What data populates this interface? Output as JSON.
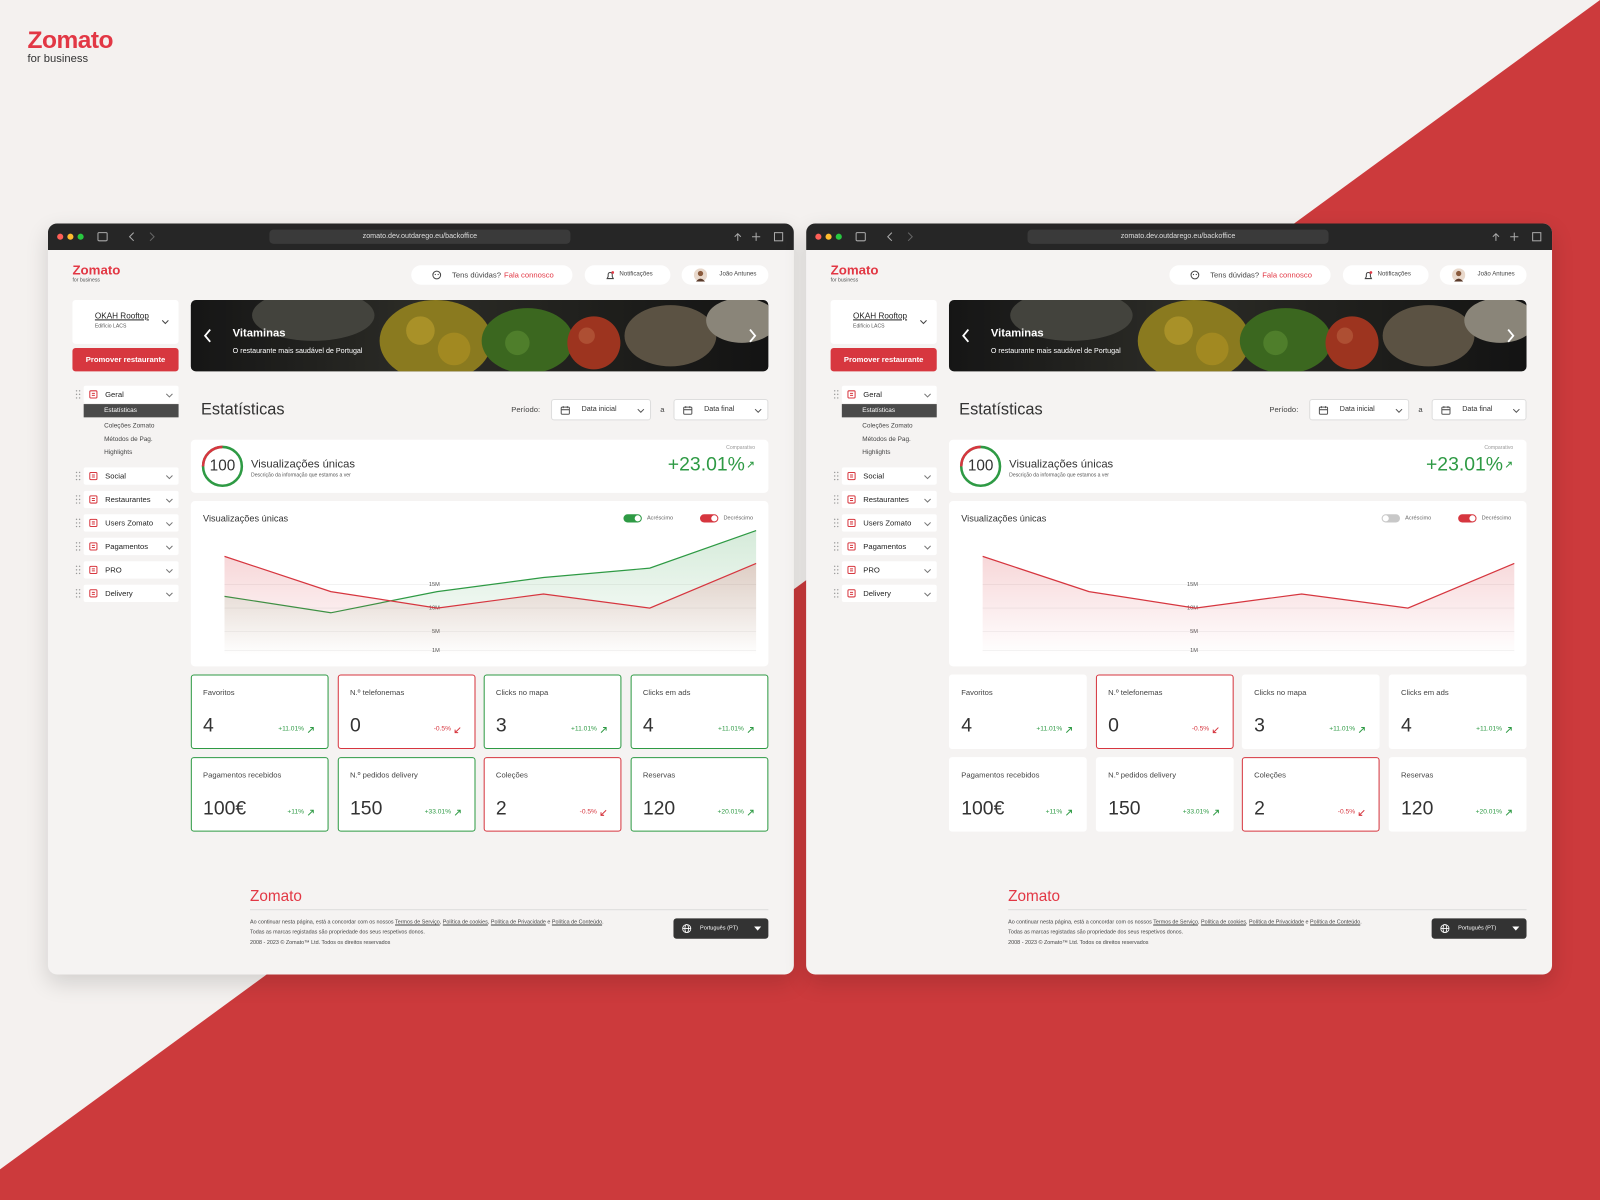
{
  "brand": {
    "name": "Zomato",
    "tagline": "for business"
  },
  "screens": [
    {
      "url": "zomato.dev.outdarego.eu/backoffice",
      "logo": {
        "name": "Zomato",
        "tagline": "for business"
      },
      "help": {
        "question": "Tens dúvidas?",
        "link": "Fala connosco"
      },
      "notifications": "Notificações",
      "user": "João Antunes",
      "restaurant": {
        "name": "OKAH Rooftop",
        "address": "Edifício LACS"
      },
      "promote": "Promover restaurante",
      "menu": [
        {
          "label": "Geral",
          "active": 0,
          "children": [
            "Estatísticas",
            "Coleções Zomato",
            "Métodos de Pag.",
            "Highlights"
          ]
        },
        {
          "label": "Social"
        },
        {
          "label": "Restaurantes"
        },
        {
          "label": "Users Zomato"
        },
        {
          "label": "Pagamentos"
        },
        {
          "label": "PRO"
        },
        {
          "label": "Delivery"
        }
      ],
      "banner": {
        "title": "Vitaminas",
        "subtitle": "O restaurante mais saudável de Portugal"
      },
      "page_title": "Estatísticas",
      "period": {
        "label": "Período:",
        "start": "Data inicial",
        "separator": "a",
        "end": "Data final"
      },
      "kpi": {
        "score": "100",
        "title": "Visualizações únicas",
        "description": "Descrição da informação que estamos a ver",
        "compare_label": "Comparativo",
        "change": "+23.01%"
      },
      "chart": {
        "type": "area",
        "title": "Visualizações únicas",
        "categories": [
          null,
          null,
          null,
          null,
          null,
          null
        ],
        "series": [
          {
            "name": "Acréscimo",
            "color": "#2e9a44",
            "visible": true,
            "values": [
              12500000,
              9000000,
              13500000,
              16500000,
              18500000,
              26500000
            ]
          },
          {
            "name": "Decréscimo",
            "color": "#d6363f",
            "visible": true,
            "values": [
              21000000,
              13500000,
              10000000,
              13000000,
              10000000,
              19500000
            ]
          }
        ],
        "ylim": [
          0,
          28000000
        ],
        "yticks": [
          {
            "value": 1000000,
            "label": "1M"
          },
          {
            "value": 5000000,
            "label": "5M"
          },
          {
            "value": 10000000,
            "label": "10M"
          },
          {
            "value": 15000000,
            "label": "15M"
          }
        ],
        "grid": true
      },
      "cards": [
        {
          "label": "Favoritos",
          "value": "4",
          "change": "+11.01%"
        },
        {
          "label": "N.º telefonemas",
          "value": "0",
          "change": "-0.5%"
        },
        {
          "label": "Clicks no mapa",
          "value": "3",
          "change": "+11.01%"
        },
        {
          "label": "Clicks em ads",
          "value": "4",
          "change": "+11.01%"
        },
        {
          "label": "Pagamentos recebidos",
          "value": "100€",
          "change": "+11%"
        },
        {
          "label": "N.º pedidos delivery",
          "value": "150",
          "change": "+33.01%"
        },
        {
          "label": "Coleções",
          "value": "2",
          "change": "-0.5%"
        },
        {
          "label": "Reservas",
          "value": "120",
          "change": "+20.01%"
        }
      ],
      "footer": {
        "brand": "Zomato",
        "legal": [
          "Ao continuar nesta página, está a concordar com os nossos ",
          "Termos de Serviço",
          ", ",
          "Política de cookies",
          ", ",
          "Política de Privacidade",
          " e ",
          "Política de Conteúdo",
          "."
        ],
        "trademarks": "Todas as marcas registadas são propriedade dos seus respetivos donos.",
        "copyright": "2008 - 2023 © Zomato™ Ltd. Todos os direitos reservados",
        "language": "Português (PT)"
      }
    },
    {
      "url": "zomato.dev.outdarego.eu/backoffice",
      "logo": {
        "name": "Zomato",
        "tagline": "for business"
      },
      "help": {
        "question": "Tens dúvidas?",
        "link": "Fala connosco"
      },
      "notifications": "Notificações",
      "user": "João Antunes",
      "restaurant": {
        "name": "OKAH Rooftop",
        "address": "Edifício LACS"
      },
      "promote": "Promover restaurante",
      "menu": [
        {
          "label": "Geral",
          "active": 0,
          "children": [
            "Estatísticas",
            "Coleções Zomato",
            "Métodos de Pag.",
            "Highlights"
          ]
        },
        {
          "label": "Social"
        },
        {
          "label": "Restaurantes"
        },
        {
          "label": "Users Zomato"
        },
        {
          "label": "Pagamentos"
        },
        {
          "label": "PRO"
        },
        {
          "label": "Delivery"
        }
      ],
      "banner": {
        "title": "Vitaminas",
        "subtitle": "O restaurante mais saudável de Portugal"
      },
      "page_title": "Estatísticas",
      "period": {
        "label": "Período:",
        "start": "Data inicial",
        "separator": "a",
        "end": "Data final"
      },
      "kpi": {
        "score": "100",
        "title": "Visualizações únicas",
        "description": "Descrição da informação que estamos a ver",
        "compare_label": "Comparativo",
        "change": "+23.01%"
      },
      "chart": {
        "type": "area",
        "title": "Visualizações únicas",
        "categories": [
          null,
          null,
          null,
          null,
          null,
          null
        ],
        "series": [
          {
            "name": "Acréscimo",
            "color": "#2e9a44",
            "visible": false
          },
          {
            "name": "Decréscimo",
            "color": "#d6363f",
            "visible": true,
            "values": [
              21000000,
              13500000,
              10000000,
              13000000,
              10000000,
              19500000
            ]
          }
        ],
        "ylim": [
          0,
          28000000
        ],
        "yticks": [
          {
            "value": 1000000,
            "label": "1M"
          },
          {
            "value": 5000000,
            "label": "5M"
          },
          {
            "value": 10000000,
            "label": "10M"
          },
          {
            "value": 15000000,
            "label": "15M"
          }
        ],
        "grid": true
      },
      "cards": [
        {
          "label": "Favoritos",
          "value": "4",
          "change": "+11.01%"
        },
        {
          "label": "N.º telefonemas",
          "value": "0",
          "change": "-0.5%"
        },
        {
          "label": "Clicks no mapa",
          "value": "3",
          "change": "+11.01%"
        },
        {
          "label": "Clicks em ads",
          "value": "4",
          "change": "+11.01%"
        },
        {
          "label": "Pagamentos recebidos",
          "value": "100€",
          "change": "+11%"
        },
        {
          "label": "N.º pedidos delivery",
          "value": "150",
          "change": "+33.01%"
        },
        {
          "label": "Coleções",
          "value": "2",
          "change": "-0.5%"
        },
        {
          "label": "Reservas",
          "value": "120",
          "change": "+20.01%"
        }
      ],
      "footer": {
        "brand": "Zomato",
        "legal": [
          "Ao continuar nesta página, está a concordar com os nossos ",
          "Termos de Serviço",
          ", ",
          "Política de cookies",
          ", ",
          "Política de Privacidade",
          " e ",
          "Política de Conteúdo",
          "."
        ],
        "trademarks": "Todas as marcas registadas são propriedade dos seus respetivos donos.",
        "copyright": "2008 - 2023 © Zomato™ Ltd. Todos os direitos reservados",
        "language": "Português (PT)"
      }
    }
  ]
}
